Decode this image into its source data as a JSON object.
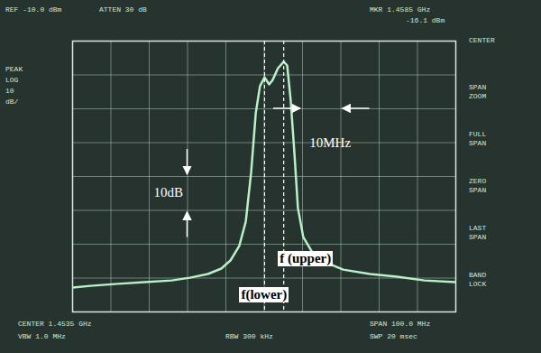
{
  "chart_data": {
    "type": "line",
    "x": [
      1403.5,
      1408.2,
      1415.3,
      1422.3,
      1429.4,
      1434.1,
      1438.8,
      1442.3,
      1444.7,
      1447.0,
      1448.7,
      1450.1,
      1451.3,
      1452.4,
      1453.6,
      1454.8,
      1455.7,
      1457.1,
      1458.6,
      1459.5,
      1460.4,
      1461.4,
      1462.3,
      1463.7,
      1465.9,
      1469.4,
      1474.1,
      1481.1,
      1488.2,
      1495.3,
      1503.5
    ],
    "values": [
      -82.8,
      -82.3,
      -81.7,
      -81.2,
      -80.7,
      -79.9,
      -78.8,
      -77.2,
      -74.8,
      -70.5,
      -63.3,
      -48.7,
      -31.3,
      -23.3,
      -20.7,
      -22.8,
      -21.5,
      -18.0,
      -16.1,
      -17.2,
      -27.3,
      -43.3,
      -59.3,
      -67.9,
      -72.1,
      -75.3,
      -77.5,
      -78.8,
      -79.6,
      -80.7,
      -81.2
    ],
    "color": "#b8f0c8",
    "xlim": [
      1403.5,
      1503.5
    ],
    "xticks": [
      1403.5,
      1413.5,
      1423.5,
      1433.5,
      1443.5,
      1453.5,
      1463.5,
      1473.5,
      1483.5,
      1493.5,
      1503.5
    ],
    "ylim": [
      -90,
      -10
    ],
    "yticks": [
      -90,
      -80,
      -70,
      -60,
      -50,
      -40,
      -30,
      -20,
      -10
    ],
    "grid": true,
    "tick_labels": false,
    "markers": [
      {
        "label": "f(lower)",
        "x": 1453.6
      },
      {
        "label": "f (upper)",
        "x": 1458.6
      }
    ],
    "scale_annotations": [
      {
        "text": "10MHz",
        "axis": "x",
        "span": 10
      },
      {
        "text": "10dB",
        "axis": "y",
        "span": 10
      }
    ],
    "screen_text": {
      "top_left": [
        "REF -10.0 dBm",
        "ATTEN 30 dB"
      ],
      "top_right": [
        "MKR 1.4585 GHz",
        "-16.1 dBm"
      ],
      "left": [
        "PEAK",
        "LOG",
        "10",
        "dB/"
      ],
      "softkeys": [
        "CENTER",
        "SPAN ZOOM",
        "FULL SPAN",
        "ZERO SPAN",
        "LAST SPAN",
        "BAND LOCK"
      ],
      "bottom_left": [
        "CENTER 1.4535 GHz",
        "VBW 1.0 MHz"
      ],
      "bottom_mid": [
        "RBW 300 kHz"
      ],
      "bottom_right": [
        "SPAN 100.0 MHz",
        "SWP 20 msec"
      ]
    }
  }
}
